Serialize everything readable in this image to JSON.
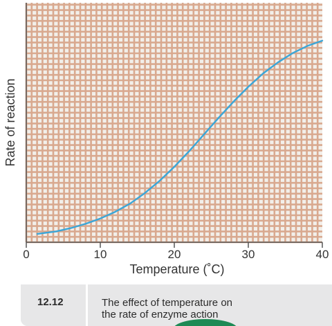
{
  "chart_data": {
    "type": "line",
    "xlabel": "Temperature (˚C)",
    "ylabel": "Rate of reaction",
    "xlim": [
      0,
      40
    ],
    "x_ticks": [
      0,
      10,
      20,
      30,
      40
    ],
    "y_ticks_labeled": false,
    "grid": true,
    "legend": "none",
    "series": [
      {
        "x": [
          1.5,
          4,
          6,
          8,
          10,
          12,
          14,
          16,
          18,
          20,
          22,
          24,
          26,
          28,
          30,
          32,
          34,
          36,
          38,
          40
        ],
        "y": [
          3.5,
          4.5,
          5.9,
          7.7,
          9.9,
          12.7,
          16.1,
          20.5,
          25.6,
          31.5,
          38.0,
          45.0,
          52.0,
          58.7,
          64.9,
          70.5,
          75.1,
          79.0,
          82.0,
          84.2
        ]
      }
    ],
    "colors": {
      "background": "#f2efea",
      "grid": "#d9a98f",
      "axis": "#555555",
      "line": "#3aa6d8"
    }
  },
  "caption": {
    "number": "12.12",
    "line1": "The effect of temperature on",
    "line2": "the rate of enzyme action"
  }
}
